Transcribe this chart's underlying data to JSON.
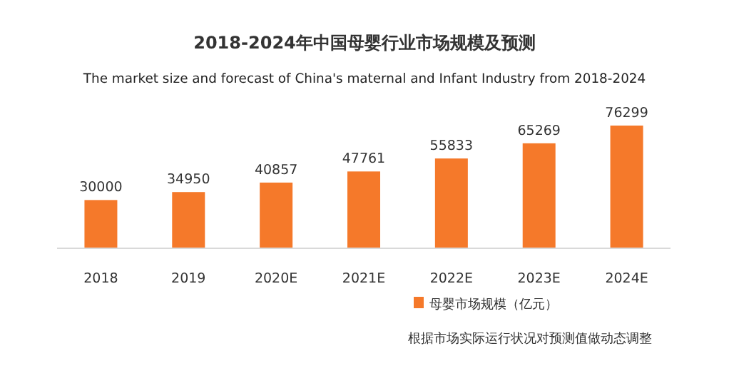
{
  "chart_data": {
    "type": "bar",
    "title": "2018-2024年中国母婴行业市场规模及预测",
    "subtitle": "The market size and forecast of China's maternal and Infant Industry from 2018-2024",
    "categories": [
      "2018",
      "2019",
      "2020E",
      "2021E",
      "2022E",
      "2023E",
      "2024E"
    ],
    "series": [
      {
        "name": "母婴市场规模（亿元）",
        "color": "#f5792a",
        "values": [
          30000,
          34950,
          40857,
          47761,
          55833,
          65269,
          76299
        ]
      }
    ],
    "data_labels": true,
    "legend": "bottom",
    "annotations": [
      "根据市场实际运行状况对预测值做动态调整"
    ]
  }
}
